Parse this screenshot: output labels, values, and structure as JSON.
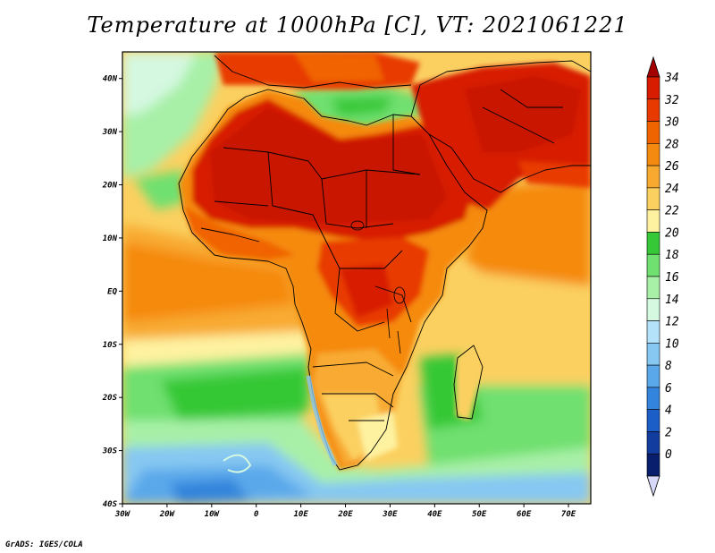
{
  "title": "Temperature at 1000hPa [C], VT: 2021061221",
  "credit": "GrADS: IGES/COLA",
  "map": {
    "lon_labels": [
      "30W",
      "20W",
      "10W",
      "0",
      "10E",
      "20E",
      "30E",
      "40E",
      "50E",
      "60E",
      "70E"
    ],
    "lat_labels": [
      "40N",
      "30N",
      "20N",
      "10N",
      "EQ",
      "10S",
      "20S",
      "30S",
      "40S"
    ]
  },
  "colorbar": {
    "labels": [
      "34",
      "32",
      "30",
      "28",
      "26",
      "24",
      "22",
      "20",
      "18",
      "16",
      "14",
      "12",
      "10",
      "8",
      "6",
      "4",
      "2",
      "0"
    ],
    "colors": [
      "#a50000",
      "#d71c00",
      "#e83a00",
      "#f06400",
      "#f58a10",
      "#f8aa30",
      "#fbd060",
      "#fef2a0",
      "#36c836",
      "#70e070",
      "#a8f0a8",
      "#d4f8e0",
      "#b4e2fa",
      "#86c8f2",
      "#5aa8ea",
      "#3284dc",
      "#1c5ec8",
      "#123c9e",
      "#0a1e6e",
      "#d8d8f8"
    ]
  },
  "colors": {
    "ocean_cool": "#c8f4d0",
    "ocean_warm": "#f8b042",
    "land_hot": "#d41a00"
  }
}
